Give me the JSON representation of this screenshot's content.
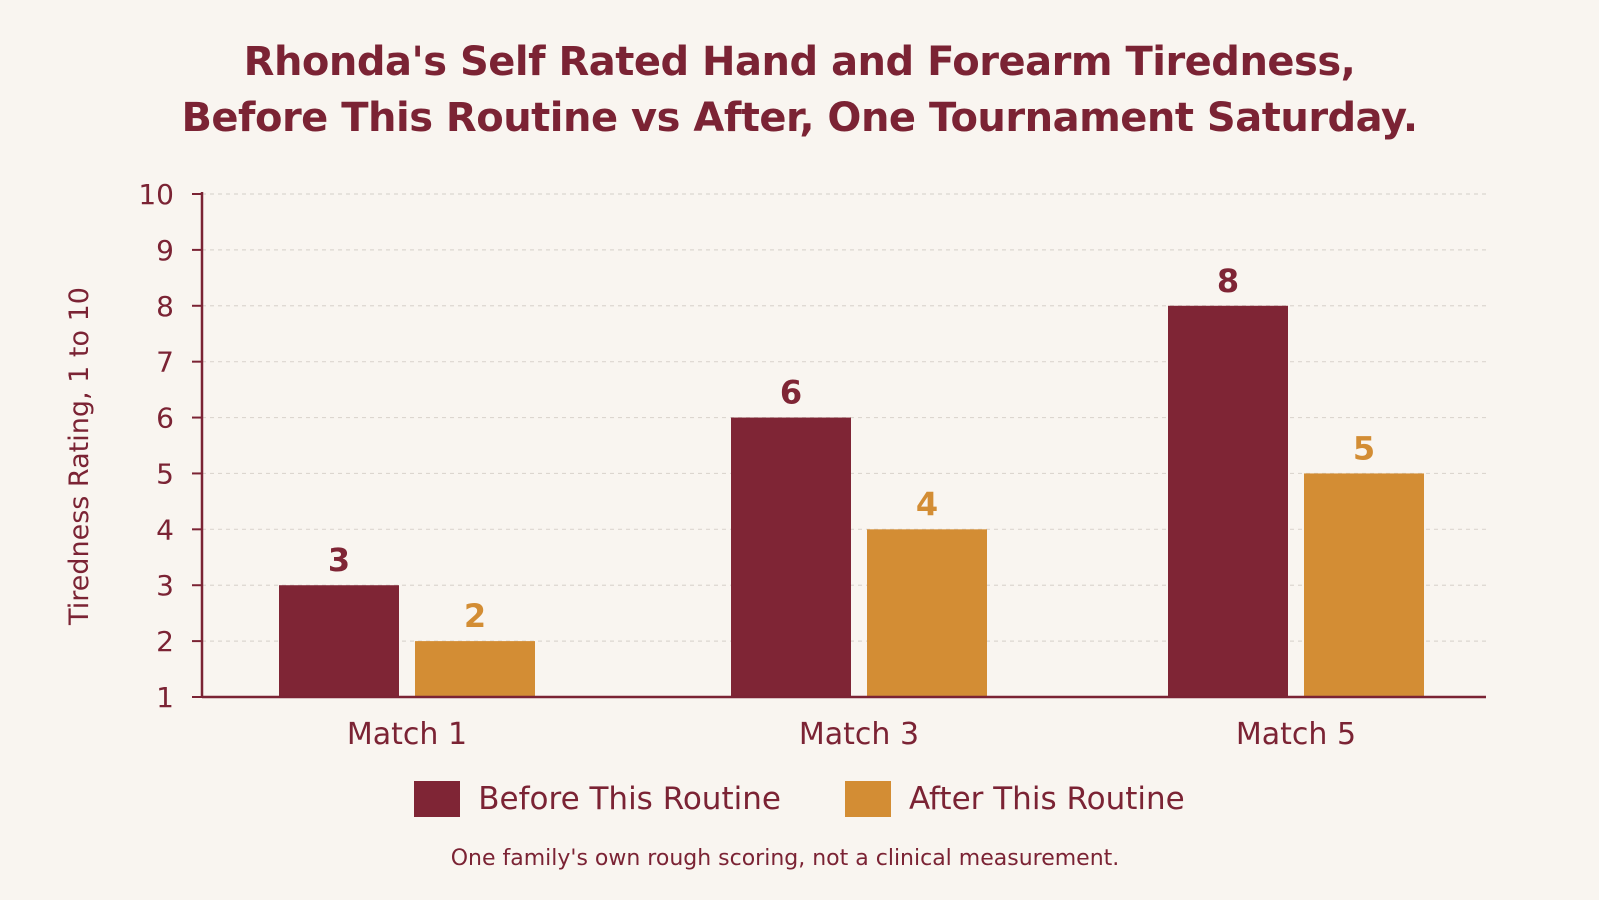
{
  "chart_data": {
    "type": "bar",
    "title_lines": [
      "Rhonda's Self Rated Hand and Forearm Tiredness,",
      "Before This Routine vs After, One Tournament Saturday."
    ],
    "xlabel": "",
    "ylabel": "Tiredness Rating, 1 to 10",
    "ylim": [
      1,
      10
    ],
    "yticks": [
      "1",
      "2",
      "3",
      "4",
      "5",
      "6",
      "7",
      "8",
      "9",
      "10"
    ],
    "categories": [
      "Match 1",
      "Match 3",
      "Match 5"
    ],
    "series": [
      {
        "name": "Before This Routine",
        "values": [
          3,
          6,
          8
        ],
        "color": "#7f2535"
      },
      {
        "name": "After This Routine",
        "values": [
          2,
          4,
          5
        ],
        "color": "#d38d34"
      }
    ],
    "grid": "horizontal dashed",
    "legend_position": "bottom-center",
    "data_labels": true,
    "footnote": "One family's own rough scoring, not a clinical measurement."
  },
  "colors": {
    "title": "#7b2334",
    "axis": "#7b2334",
    "grid": "#dcd6cf",
    "background": "#f9f5f0"
  }
}
